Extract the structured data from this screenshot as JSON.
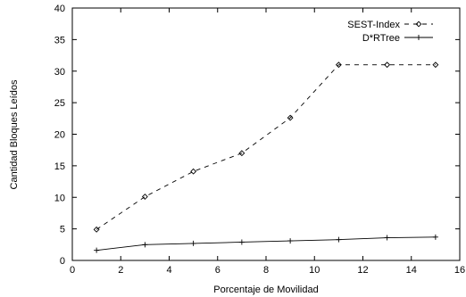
{
  "chart_data": {
    "type": "line",
    "title": "",
    "xlabel": "Porcentaje de Movilidad",
    "ylabel": "Cantidad Bloques Leídos",
    "xlim": [
      0,
      16
    ],
    "ylim": [
      0,
      40
    ],
    "xticks": [
      0,
      2,
      4,
      6,
      8,
      10,
      12,
      14,
      16
    ],
    "yticks": [
      0,
      5,
      10,
      15,
      20,
      25,
      30,
      35,
      40
    ],
    "grid": false,
    "legend_position": "top-right",
    "series": [
      {
        "name": "SEST-Index",
        "line_style": "dashed",
        "marker": "diamond",
        "color": "#000000",
        "x": [
          1,
          3,
          5,
          7,
          9,
          11,
          13,
          15
        ],
        "y": [
          4.9,
          10.1,
          14.1,
          17.0,
          22.6,
          31.0,
          31.0,
          31.0
        ]
      },
      {
        "name": "D*RTree",
        "line_style": "solid",
        "marker": "plus",
        "color": "#000000",
        "x": [
          1,
          3,
          5,
          7,
          9,
          11,
          13,
          15
        ],
        "y": [
          1.6,
          2.5,
          2.7,
          2.9,
          3.1,
          3.3,
          3.6,
          3.7
        ]
      }
    ]
  }
}
